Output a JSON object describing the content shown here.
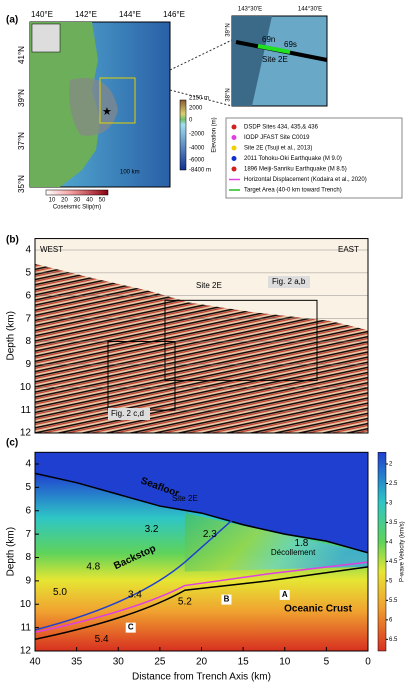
{
  "panel_a": {
    "label": "(a)",
    "lon_ticks": [
      "140°E",
      "142°E",
      "144°E",
      "146°E"
    ],
    "lat_ticks": [
      "41°N",
      "39°N",
      "37°N",
      "35°N"
    ],
    "elevation": {
      "title": "Elevation (m)",
      "labels": [
        "2150 m",
        "2000",
        "0",
        "-2000",
        "-4000",
        "-6000",
        "-8400 m"
      ]
    },
    "slip": {
      "title": "Coseismic Slip(m)",
      "ticks": [
        10,
        20,
        30,
        40,
        50
      ]
    },
    "scale": "100 km",
    "inset": {
      "lon_ticks": [
        "143°30'E",
        "144°30'E"
      ],
      "lat_ticks": [
        "39°N",
        "38°N"
      ],
      "labels": [
        "69n",
        "69s",
        "Site 2E"
      ]
    },
    "legend": [
      "DSDP Sites 434, 435,& 436",
      "IODP JFAST Site C0019",
      "Site 2E (Tsuji et al., 2013)",
      "2011 Tohoku-Oki Earthquake (M 9.0)",
      "1896 Meiji-Sanriku Earthquake (M 8.5)",
      "Horizontal Displacement (Kodaira et al., 2020)",
      "Target Area (40-0 km toward Trench)"
    ]
  },
  "panel_b": {
    "label": "(b)",
    "ylabel": "Depth (km)",
    "ylim": [
      3.5,
      12
    ],
    "yticks": [
      4,
      5,
      6,
      7,
      8,
      9,
      10,
      11,
      12
    ],
    "west": "WEST",
    "east": "EAST",
    "site": "Site 2E",
    "fig_ab": "Fig. 2 a,b",
    "fig_cd": "Fig. 2 c,d"
  },
  "panel_c": {
    "label": "(c)",
    "ylabel": "Depth (km)",
    "xlabel": "Distance from Trench Axis (km)",
    "ylim": [
      3.5,
      12
    ],
    "yticks": [
      4,
      5,
      6,
      7,
      8,
      9,
      10,
      11,
      12
    ],
    "xlim": [
      40,
      0
    ],
    "xticks": [
      40,
      35,
      30,
      25,
      20,
      15,
      10,
      5,
      0
    ],
    "colorbar": {
      "title": "P-wave Velocity (km/s)",
      "lim": [
        1.7,
        6.8
      ],
      "ticks": [
        2,
        2.5,
        3,
        3.5,
        4,
        4.5,
        5,
        5.5,
        6,
        6.5
      ]
    },
    "labels": {
      "seafloor": "Seafloor",
      "site": "Site 2E",
      "v32": "3.2",
      "v23": "2.3",
      "v18": "1.8",
      "v48": "4.8",
      "backstop": "Backstop",
      "decollement": "Décollement",
      "v50": "5.0",
      "v34": "3.4",
      "v52": "5.2",
      "B": "B",
      "A": "A",
      "crust": "Oceanic Crust",
      "C": "C",
      "v54": "5.4"
    }
  }
}
